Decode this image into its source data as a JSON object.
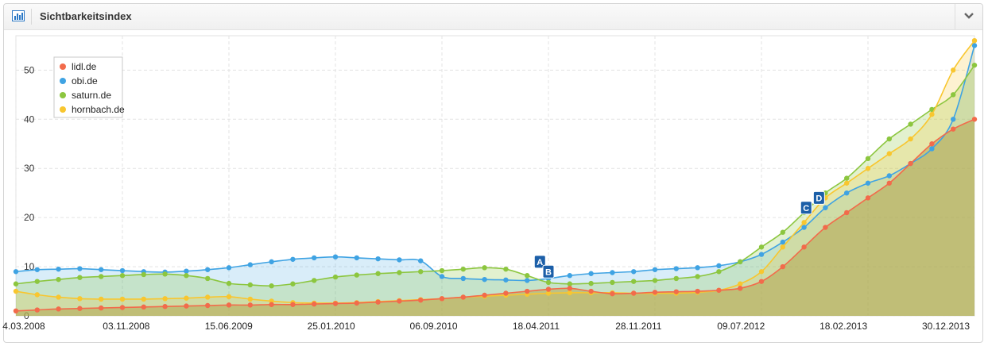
{
  "widget": {
    "title": "Sichtbarkeitsindex",
    "icon": "bar-chart-icon",
    "collapse_icon": "chevron-down-icon"
  },
  "chart_data": {
    "type": "area",
    "title": "",
    "xlabel": "",
    "ylabel": "",
    "ylim": [
      0,
      57
    ],
    "yticks": [
      0,
      10,
      20,
      30,
      40,
      50
    ],
    "xticks": [
      "4.03.2008",
      "03.11.2008",
      "15.06.2009",
      "25.01.2010",
      "06.09.2010",
      "18.04.2011",
      "28.11.2011",
      "09.07.2012",
      "18.02.2013",
      "30.12.2013"
    ],
    "grid": true,
    "legend": "top-left",
    "series": [
      {
        "name": "lidl.de",
        "color": "#f26b4b",
        "values": [
          1.0,
          1.2,
          1.4,
          1.5,
          1.6,
          1.7,
          1.8,
          1.9,
          2.0,
          2.1,
          2.2,
          2.2,
          2.3,
          2.3,
          2.4,
          2.5,
          2.6,
          2.8,
          3.0,
          3.2,
          3.5,
          3.8,
          4.2,
          4.6,
          5.0,
          5.4,
          5.6,
          5.0,
          4.5,
          4.6,
          4.8,
          4.9,
          5.0,
          5.2,
          5.6,
          7.0,
          10.0,
          14.0,
          18.0,
          21.0,
          24.0,
          27.0,
          31.0,
          35.0,
          38.0,
          40.0
        ]
      },
      {
        "name": "obi.de",
        "color": "#3fa3e3",
        "values": [
          9.0,
          9.4,
          9.5,
          9.6,
          9.4,
          9.2,
          9.0,
          8.9,
          9.1,
          9.4,
          9.8,
          10.4,
          11.0,
          11.5,
          11.8,
          12.0,
          11.8,
          11.6,
          11.4,
          11.2,
          8.0,
          7.6,
          7.4,
          7.3,
          7.2,
          7.6,
          8.2,
          8.6,
          8.8,
          9.0,
          9.4,
          9.6,
          9.8,
          10.2,
          11.0,
          12.5,
          15.0,
          18.0,
          22.0,
          25.0,
          27.0,
          28.5,
          31.0,
          34.0,
          40.0,
          55.0
        ]
      },
      {
        "name": "saturn.de",
        "color": "#8cc63f",
        "values": [
          6.5,
          7.0,
          7.4,
          7.8,
          8.0,
          8.2,
          8.4,
          8.5,
          8.2,
          7.6,
          6.6,
          6.3,
          6.1,
          6.5,
          7.2,
          7.9,
          8.3,
          8.6,
          8.8,
          9.0,
          9.2,
          9.5,
          9.8,
          9.5,
          8.2,
          6.8,
          6.5,
          6.6,
          6.8,
          7.0,
          7.2,
          7.6,
          8.0,
          9.0,
          11.0,
          14.0,
          17.0,
          21.0,
          25.0,
          28.0,
          32.0,
          36.0,
          39.0,
          42.0,
          45.0,
          51.0
        ]
      },
      {
        "name": "hornbach.de",
        "color": "#f8c62f",
        "values": [
          5.0,
          4.3,
          3.8,
          3.5,
          3.4,
          3.4,
          3.4,
          3.5,
          3.6,
          3.8,
          3.9,
          3.4,
          3.0,
          2.7,
          2.6,
          2.6,
          2.7,
          2.9,
          3.1,
          3.3,
          3.5,
          3.8,
          4.0,
          4.2,
          4.4,
          4.6,
          4.7,
          4.7,
          4.7,
          4.6,
          4.6,
          4.6,
          4.8,
          5.2,
          6.5,
          9.0,
          14.0,
          19.0,
          24.0,
          27.0,
          30.0,
          33.0,
          36.0,
          41.0,
          50.0,
          56.0
        ]
      }
    ],
    "annotations": [
      {
        "label": "A",
        "x_index": 24.6,
        "value": 11.0
      },
      {
        "label": "B",
        "x_index": 25.0,
        "value": 9.0
      },
      {
        "label": "C",
        "x_index": 37.1,
        "value": 22.0
      },
      {
        "label": "D",
        "x_index": 37.7,
        "value": 24.0
      }
    ]
  }
}
